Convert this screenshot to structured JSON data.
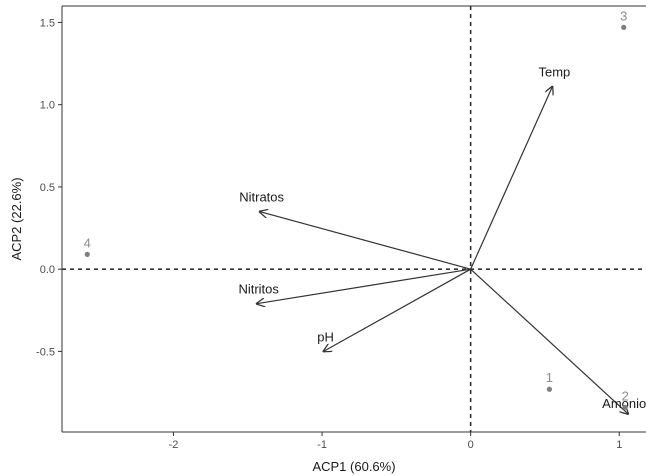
{
  "chart_data": {
    "type": "scatter",
    "subtype": "pca-biplot",
    "title": "",
    "xlabel": "ACP1 (60.6%)",
    "ylabel": "ACP2 (22.6%)",
    "xlim": [
      -2.75,
      1.18
    ],
    "ylim": [
      -0.99,
      1.6
    ],
    "xticks": [
      -2,
      -1,
      0,
      1
    ],
    "yticks": [
      -0.5,
      0.0,
      0.5,
      1.0,
      1.5
    ],
    "xtick_labels": [
      "-2",
      "-1",
      "0",
      "1"
    ],
    "ytick_labels": [
      "-0.5",
      "0.0",
      "0.5",
      "1.0",
      "1.5"
    ],
    "grid": false,
    "reference_lines": {
      "x": 0,
      "y": 0,
      "style": "dashed"
    },
    "points": [
      {
        "label": "1",
        "x": 0.53,
        "y": -0.73
      },
      {
        "label": "2",
        "x": 1.04,
        "y": -0.84
      },
      {
        "label": "3",
        "x": 1.03,
        "y": 1.47
      },
      {
        "label": "4",
        "x": -2.58,
        "y": 0.09
      }
    ],
    "loadings": [
      {
        "label": "Temp",
        "x": 0.55,
        "y": 1.11
      },
      {
        "label": "Nitratos",
        "x": -1.42,
        "y": 0.35
      },
      {
        "label": "Nitritos",
        "x": -1.44,
        "y": -0.21
      },
      {
        "label": "pH",
        "x": -0.99,
        "y": -0.5
      },
      {
        "label": "Amonio",
        "x": 1.06,
        "y": -0.88
      }
    ],
    "colors": {
      "points": "#7f7f7f",
      "point_labels": "#8c8c8c",
      "arrows": "#333333",
      "text": "#1a1a1a"
    }
  }
}
